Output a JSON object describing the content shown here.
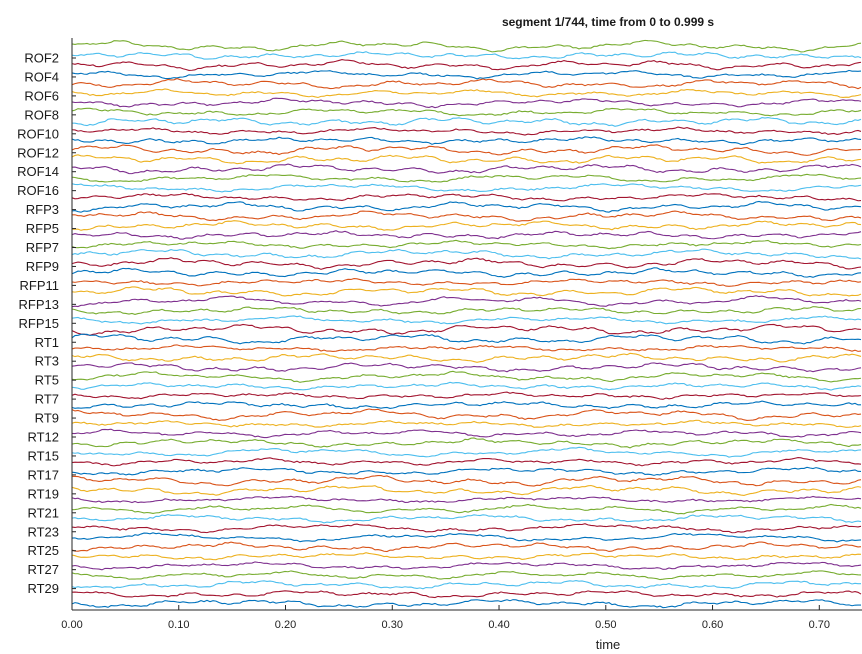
{
  "chart_data": {
    "type": "line",
    "title": "segment 1/744, time from 0 to 0.999 s",
    "xlabel": "time",
    "ylabel": "",
    "xlim": [
      0,
      0.74
    ],
    "xticks": [
      "0.00",
      "0.10",
      "0.20",
      "0.30",
      "0.40",
      "0.50",
      "0.60",
      "0.70"
    ],
    "xtick_values": [
      0,
      0.1,
      0.2,
      0.3,
      0.4,
      0.5,
      0.6,
      0.7
    ],
    "labeled_channels": [
      "ROF2",
      "ROF4",
      "ROF6",
      "ROF8",
      "ROF10",
      "ROF12",
      "ROF14",
      "ROF16",
      "RFP3",
      "RFP5",
      "RFP7",
      "RFP9",
      "RFP11",
      "RFP13",
      "RFP15",
      "RT1",
      "RT3",
      "RT5",
      "RT7",
      "RT9",
      "RT12",
      "RT15",
      "RT17",
      "RT19",
      "RT21",
      "RT23",
      "RT25",
      "RT27",
      "RT29"
    ],
    "trace_count": 60,
    "trace_colors": [
      "#77ac30",
      "#4dbeee",
      "#a2142f",
      "#0072bd",
      "#d95319",
      "#edb120",
      "#7e2f8e"
    ],
    "grid": false
  },
  "colors": {
    "axis": "#262626",
    "background": "#ffffff"
  }
}
